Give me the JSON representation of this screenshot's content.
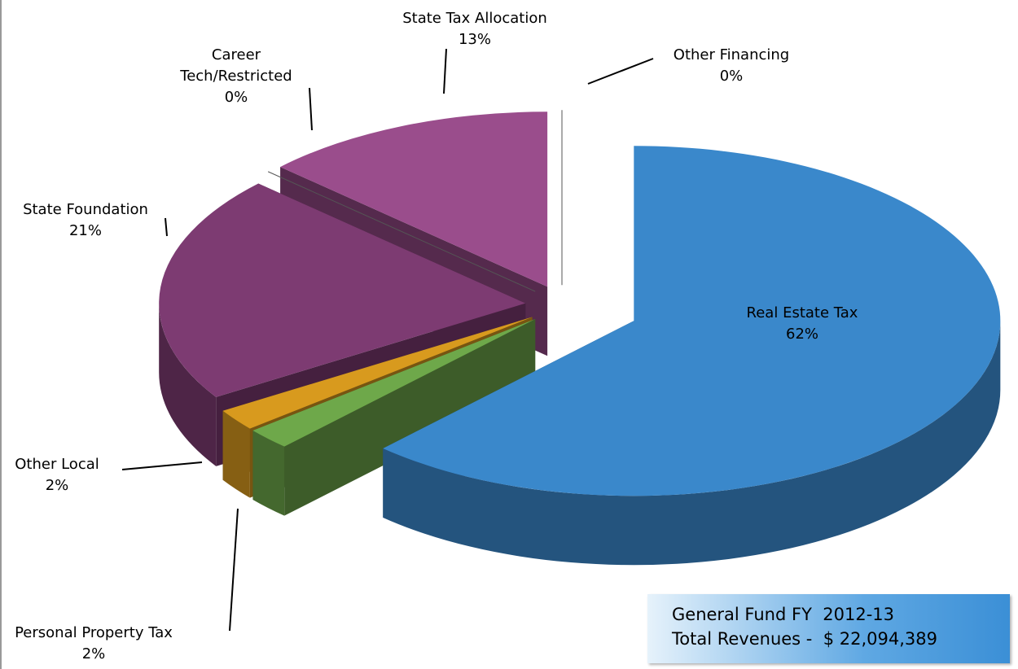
{
  "chart_data": {
    "type": "pie",
    "categories": [
      "Real Estate Tax",
      "Personal Property Tax",
      "Other Local",
      "State Foundation",
      "Career Tech/Restricted",
      "State Tax Allocation",
      "Other Financing"
    ],
    "values": [
      62,
      2,
      2,
      21,
      0,
      13,
      0
    ],
    "value_labels": [
      "62%",
      "2%",
      "2%",
      "21%",
      "0%",
      "13%",
      "0%"
    ],
    "colors": [
      "#3a88cb",
      "#6ea84a",
      "#d89a1e",
      "#7d3b72",
      "#8a4a16",
      "#9a4d8c",
      "#dfe7ef"
    ],
    "annotations": [
      "General Fund FY  2012-13",
      "Total Revenues -  $ 22,094,389"
    ]
  }
}
